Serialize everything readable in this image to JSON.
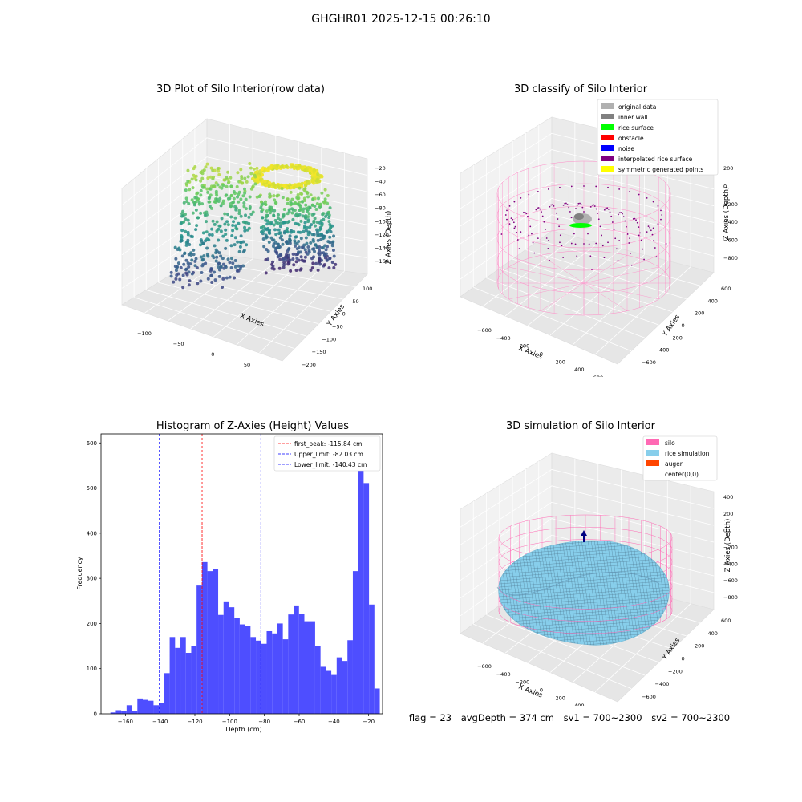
{
  "suptitle": "GHGHR01 2025-12-15 00:26:10",
  "panels": {
    "raw": {
      "title": "3D Plot of Silo Interior(row data)",
      "xlabel": "X Axies",
      "ylabel": "Y Axies",
      "zlabel": "Z Axies (Depth)",
      "xticks": [
        "−100",
        "−50",
        "0",
        "50"
      ],
      "yticks": [
        "100",
        "50",
        "0",
        "−50",
        "−100",
        "−150",
        "−200"
      ],
      "zticks": [
        "−20",
        "−40",
        "−60",
        "−80",
        "−100",
        "−120",
        "−140",
        "−160"
      ],
      "colormap": "viridis"
    },
    "classify": {
      "title": "3D classify of Silo Interior",
      "xlabel": "X Axies",
      "ylabel": "Y Axies",
      "zlabel": "Z Axies (Depth)",
      "xticks": [
        "−600",
        "−400",
        "−200",
        "0",
        "200",
        "400",
        "600"
      ],
      "yticks": [
        "600",
        "400",
        "200",
        "0",
        "−200",
        "−400",
        "−600"
      ],
      "zticks": [
        "200",
        "0",
        "−200",
        "−400",
        "−600",
        "−800"
      ],
      "legend": [
        {
          "label": "original data",
          "color": "#b0b0b0"
        },
        {
          "label": "inner wall",
          "color": "#808080"
        },
        {
          "label": "rice surface",
          "color": "#00ff00"
        },
        {
          "label": "obstacle",
          "color": "#ff0000"
        },
        {
          "label": "noise",
          "color": "#0000ff"
        },
        {
          "label": "interpolated rice surface",
          "color": "#800080"
        },
        {
          "label": "symmetric generated points",
          "color": "#ffff00"
        }
      ],
      "wire_color": "#ff8cc8"
    },
    "simulation": {
      "title": "3D simulation of Silo Interior",
      "xlabel": "X Axies",
      "ylabel": "Y Axies",
      "zlabel": "Z Axies (Depth)",
      "xticks": [
        "−600",
        "−400",
        "−200",
        "0",
        "200",
        "400",
        "600"
      ],
      "yticks": [
        "600",
        "400",
        "200",
        "0",
        "−200",
        "−400",
        "−600"
      ],
      "zticks": [
        "400",
        "200",
        "0",
        "−200",
        "−400",
        "−600",
        "−800"
      ],
      "legend": [
        {
          "label": "silo",
          "color": "#ff69b4"
        },
        {
          "label": "rice simulation",
          "color": "#87ceeb"
        },
        {
          "label": "auger",
          "color": "#ff4500"
        },
        {
          "label": "center(0,0)",
          "color": ""
        }
      ]
    }
  },
  "footer": {
    "flag": "flag = 23",
    "avg": "avgDepth = 374 cm",
    "sv1": "sv1 = 700~2300",
    "sv2": "sv2 = 700~2300"
  },
  "chart_data": [
    {
      "type": "bar",
      "title": "Histogram of Z-Axies (Height) Values",
      "xlabel": "Depth (cm)",
      "ylabel": "Frequency",
      "xlim": [
        -174,
        -12
      ],
      "ylim": [
        0,
        620
      ],
      "xticks": [
        -160,
        -140,
        -120,
        -100,
        -80,
        -60,
        -40,
        -20
      ],
      "yticks": [
        0,
        100,
        200,
        300,
        400,
        500,
        600
      ],
      "bar_color": "#4444ff",
      "bin_start": -168.6,
      "bin_width": 3.1,
      "counts": [
        3,
        8,
        6,
        19,
        6,
        34,
        31,
        29,
        19,
        24,
        90,
        170,
        146,
        170,
        135,
        150,
        284,
        336,
        316,
        320,
        219,
        249,
        236,
        212,
        198,
        195,
        170,
        162,
        155,
        183,
        178,
        200,
        165,
        220,
        240,
        221,
        205,
        205,
        150,
        104,
        95,
        86,
        125,
        117,
        163,
        316,
        582,
        511,
        242,
        56
      ],
      "vlines": [
        {
          "label": "first_peak: -115.84 cm",
          "x": -115.84,
          "color": "#ff0000"
        },
        {
          "label": "Upper_limit: -82.03 cm",
          "x": -82.03,
          "color": "#0000ff"
        },
        {
          "label": "Lower_limit: -140.43 cm",
          "x": -140.43,
          "color": "#0000ff"
        }
      ],
      "legend_position": "top-right",
      "grid": false
    }
  ]
}
